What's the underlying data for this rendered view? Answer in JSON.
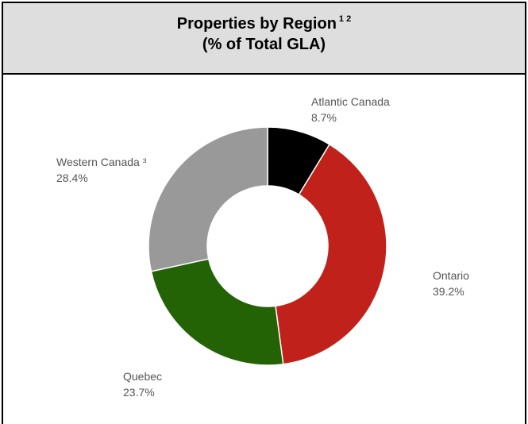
{
  "chart_data": {
    "type": "pie",
    "title_line1": "Properties by Region",
    "title_sup": "1 2",
    "title_line2": "(% of Total GLA)",
    "donut": true,
    "start_angle_deg": 0,
    "direction": "clockwise",
    "slices": [
      {
        "name": "Atlantic Canada",
        "value": 8.7,
        "label_value": "8.7%",
        "color": "#000000"
      },
      {
        "name": "Ontario",
        "value": 39.2,
        "label_value": "39.2%",
        "color": "#c0211a"
      },
      {
        "name": "Quebec",
        "value": 23.7,
        "label_value": "23.7%",
        "color": "#236205"
      },
      {
        "name": "Western Canada ³",
        "value": 28.4,
        "label_value": "28.4%",
        "color": "#999999"
      }
    ]
  }
}
